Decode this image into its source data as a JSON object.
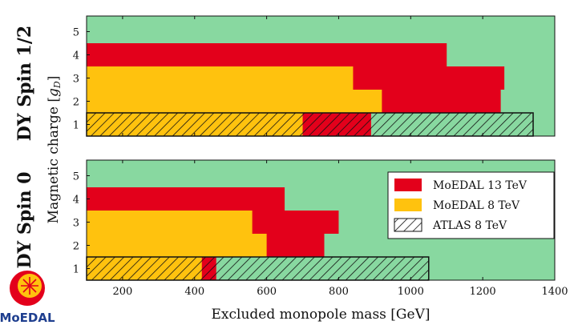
{
  "chart_data": {
    "type": "bar",
    "orientation": "horizontal",
    "xlabel": "Excluded monopole mass [GeV]",
    "ylabel": "Magnetic charge [gD]",
    "xlim": [
      100,
      1400
    ],
    "xticks": [
      200,
      400,
      600,
      800,
      1000,
      1200,
      1400
    ],
    "yticks": [
      1,
      2,
      3,
      4,
      5
    ],
    "colors": {
      "background": "#88d8a0",
      "moedal13": "#e3001b",
      "moedal8": "#ffc20e",
      "hatch": "#111111"
    },
    "legend_entries": [
      "MoEDAL 13 TeV",
      "MoEDAL 8 TeV",
      "ATLAS 8 TeV"
    ],
    "legend_position": "lower panel, top-right",
    "panels": [
      {
        "label": "DY Spin 1/2",
        "moedal_13tev": {
          "charge": [
            1,
            2,
            3,
            4
          ],
          "max_mass": [
            890,
            1250,
            1260,
            1100
          ]
        },
        "moedal_8tev": {
          "charge": [
            1,
            2,
            3
          ],
          "max_mass": [
            700,
            920,
            840
          ]
        },
        "atlas_8tev": {
          "charge": [
            1
          ],
          "max_mass": [
            1340
          ]
        }
      },
      {
        "label": "DY Spin 0",
        "moedal_13tev": {
          "charge": [
            1,
            2,
            3,
            4
          ],
          "max_mass": [
            460,
            760,
            800,
            650
          ]
        },
        "moedal_8tev": {
          "charge": [
            1,
            2,
            3
          ],
          "max_mass": [
            420,
            600,
            560
          ]
        },
        "atlas_8tev": {
          "charge": [
            1
          ],
          "max_mass": [
            1050
          ]
        }
      }
    ]
  },
  "logo": {
    "text": "MoEDAL"
  }
}
